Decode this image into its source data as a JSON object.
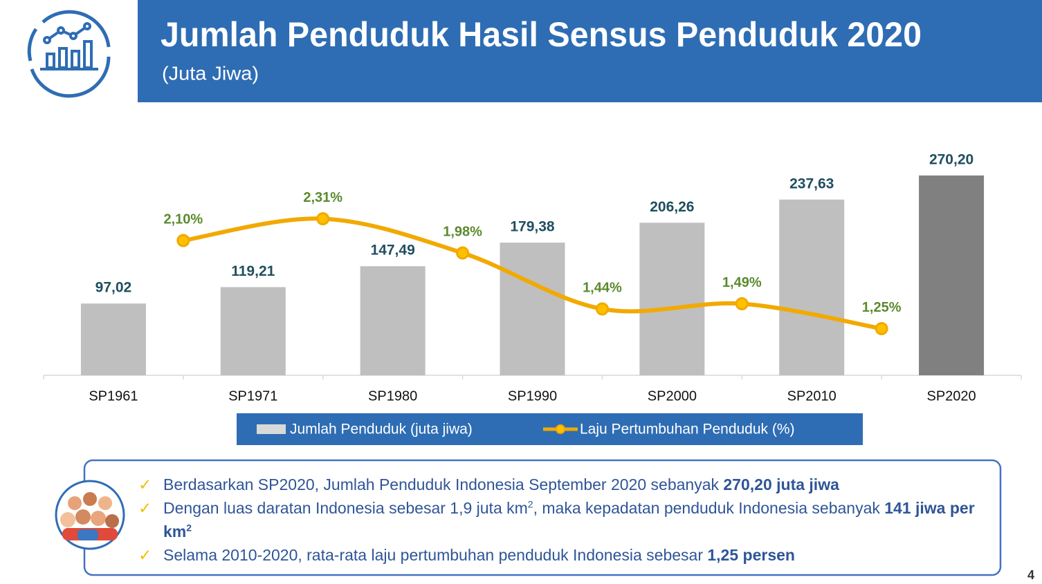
{
  "header": {
    "title": "Jumlah Penduduk Hasil Sensus Penduduk 2020",
    "subtitle": "(Juta Jiwa)"
  },
  "chart_data": {
    "type": "bar",
    "categories": [
      "SP1961",
      "SP1971",
      "SP1980",
      "SP1990",
      "SP2000",
      "SP2010",
      "SP2020"
    ],
    "series": [
      {
        "name": "Jumlah Penduduk (juta jiwa)",
        "type": "bar",
        "colors": [
          "#bfbfbf",
          "#bfbfbf",
          "#bfbfbf",
          "#bfbfbf",
          "#bfbfbf",
          "#bfbfbf",
          "#808080"
        ],
        "label_color": "#1f4e5f",
        "values": [
          97.02,
          119.21,
          147.49,
          179.38,
          206.26,
          237.63,
          270.2
        ],
        "value_labels": [
          "97,02",
          "119,21",
          "147,49",
          "179,38",
          "206,26",
          "237,63",
          "270,20"
        ]
      },
      {
        "name": "Laju Pertumbuhan Penduduk (%)",
        "type": "line",
        "axis": "y2",
        "color": "#f2a900",
        "marker_color": "#ffc000",
        "label_color": "#5b8a2e",
        "values": [
          null,
          2.1,
          2.31,
          1.98,
          1.44,
          1.49,
          1.25
        ],
        "value_labels": [
          null,
          "2,10%",
          "2,31%",
          "1,98%",
          "1,44%",
          "1,49%",
          "1,25%"
        ]
      }
    ],
    "ylim": [
      0,
      300
    ],
    "y2lim": [
      0.8,
      2.94
    ],
    "legend": "bottom"
  },
  "notes": [
    [
      {
        "text": "Berdasarkan SP2020, Jumlah Penduduk Indonesia September 2020 sebanyak "
      },
      {
        "text": "270,20 juta jiwa",
        "bold": true
      }
    ],
    [
      {
        "text": "Dengan luas daratan Indonesia sebesar 1,9 juta km"
      },
      {
        "text": "2",
        "sup": true
      },
      {
        "text": ", maka kepadatan penduduk Indonesia sebanyak "
      },
      {
        "text": "141 jiwa per km",
        "bold": true
      },
      {
        "text": "2",
        "bold": true,
        "sup": true
      }
    ],
    [
      {
        "text": "Selama 2010-2020, rata-rata laju pertumbuhan penduduk Indonesia sebesar "
      },
      {
        "text": "1,25 persen",
        "bold": true
      }
    ]
  ],
  "page_number": "4"
}
